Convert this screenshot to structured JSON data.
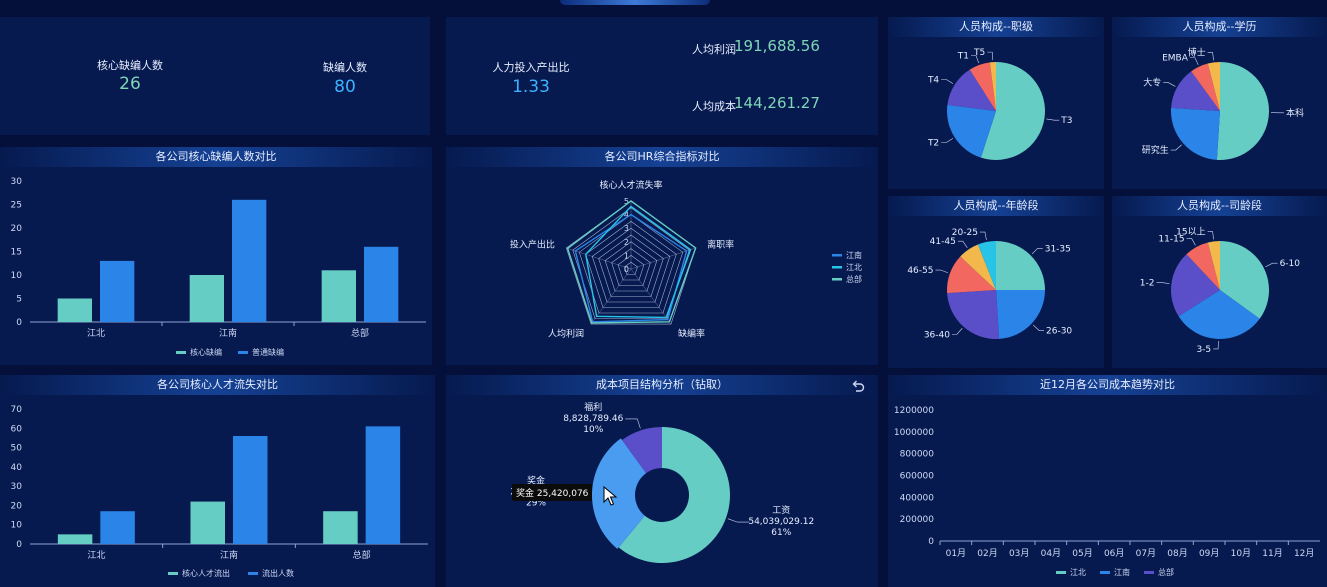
{
  "kpis": {
    "core_vacancy": {
      "label": "核心缺编人数",
      "value": "26"
    },
    "vacancy": {
      "label": "缺编人数",
      "value": "80"
    },
    "roi": {
      "label": "人力投入产出比",
      "value": "1.33"
    },
    "profit_per_capita": {
      "label": "人均利润",
      "value": "191,688.56"
    },
    "cost_per_capita": {
      "label": "人均成本",
      "value": "144,261.27"
    }
  },
  "colors": {
    "teal": "#66cdc4",
    "blue": "#2b84e8",
    "purple": "#5a4fc9",
    "red": "#f2675f",
    "yellow": "#f2b84b",
    "cyan": "#27c4e8"
  },
  "cost_pie_tooltip": "奖金 25,420,076",
  "chart_data": [
    {
      "id": "vacancy_bar",
      "type": "bar",
      "title": "各公司核心缺编人数对比",
      "categories": [
        "江北",
        "江南",
        "总部"
      ],
      "series": [
        {
          "name": "核心缺编",
          "values": [
            5,
            10,
            11
          ]
        },
        {
          "name": "普通缺编",
          "values": [
            13,
            26,
            16
          ]
        }
      ],
      "ylim": [
        0,
        30
      ],
      "yticks": [
        "0",
        "5",
        "10",
        "15",
        "20",
        "25",
        "30"
      ],
      "legend": "bottom"
    },
    {
      "id": "hr_radar",
      "type": "radar",
      "title": "各公司HR综合指标对比",
      "indicators": [
        "核心人才流失率",
        "离职率",
        "缺编率",
        "人均利润",
        "投入产出比"
      ],
      "max": 5,
      "ticks": [
        "0",
        "1",
        "2",
        "3",
        "4",
        "5"
      ],
      "series": [
        {
          "name": "江南",
          "values": [
            4,
            4.3,
            4.6,
            4.8,
            4.3
          ]
        },
        {
          "name": "江北",
          "values": [
            4.6,
            4.6,
            4.4,
            4.3,
            3.5
          ]
        },
        {
          "name": "总部",
          "values": [
            5,
            5,
            4.8,
            4.9,
            4.9
          ]
        }
      ],
      "legend": "right"
    },
    {
      "id": "talent_loss_bar",
      "type": "bar",
      "title": "各公司核心人才流失对比",
      "categories": [
        "江北",
        "江南",
        "总部"
      ],
      "series": [
        {
          "name": "核心人才流出",
          "values": [
            5,
            22,
            17
          ]
        },
        {
          "name": "流出人数",
          "values": [
            17,
            56,
            61
          ]
        }
      ],
      "ylim": [
        0,
        70
      ],
      "yticks": [
        "0",
        "10",
        "20",
        "30",
        "40",
        "50",
        "60",
        "70"
      ],
      "legend": "bottom"
    },
    {
      "id": "cost_donut",
      "type": "pie",
      "title": "成本项目结构分析（钻取）",
      "slices": [
        {
          "name": "工资",
          "value": "54,039,029.12",
          "percent": "61%",
          "share": 61
        },
        {
          "name": "奖金",
          "value": "25,420,076",
          "percent": "29%",
          "share": 29
        },
        {
          "name": "福利",
          "value": "8,828,789.46",
          "percent": "10%",
          "share": 10
        }
      ]
    },
    {
      "id": "pie_rank",
      "type": "pie",
      "title": "人员构成--职级",
      "slices": [
        {
          "name": "T3",
          "share": 55
        },
        {
          "name": "T2",
          "share": 22
        },
        {
          "name": "T4",
          "share": 14
        },
        {
          "name": "T1",
          "share": 7
        },
        {
          "name": "T5",
          "share": 2
        }
      ]
    },
    {
      "id": "pie_edu",
      "type": "pie",
      "title": "人员构成--学历",
      "slices": [
        {
          "name": "本科",
          "share": 51
        },
        {
          "name": "研究生",
          "share": 25
        },
        {
          "name": "大专",
          "share": 14
        },
        {
          "name": "EMBA",
          "share": 6
        },
        {
          "name": "博士",
          "share": 4
        }
      ]
    },
    {
      "id": "pie_age",
      "type": "pie",
      "title": "人员构成--年龄段",
      "slices": [
        {
          "name": "31-35",
          "share": 25
        },
        {
          "name": "26-30",
          "share": 24
        },
        {
          "name": "36-40",
          "share": 25
        },
        {
          "name": "46-55",
          "share": 13
        },
        {
          "name": "41-45",
          "share": 7
        },
        {
          "name": "20-25",
          "share": 6
        }
      ]
    },
    {
      "id": "pie_tenure",
      "type": "pie",
      "title": "人员构成--司龄段",
      "slices": [
        {
          "name": "6-10",
          "share": 35
        },
        {
          "name": "3-5",
          "share": 31
        },
        {
          "name": "1-2",
          "share": 22
        },
        {
          "name": "11-15",
          "share": 8
        },
        {
          "name": "15以上",
          "share": 4
        }
      ]
    },
    {
      "id": "cost_trend",
      "type": "line",
      "title": "近12月各公司成本趋势对比",
      "categories": [
        "01月",
        "02月",
        "03月",
        "04月",
        "05月",
        "06月",
        "07月",
        "08月",
        "09月",
        "10月",
        "11月",
        "12月"
      ],
      "ylim": [
        0,
        1200000
      ],
      "yticks": [
        "0",
        "200000",
        "400000",
        "600000",
        "800000",
        "1000000",
        "1200000"
      ],
      "series": [
        {
          "name": "江北"
        },
        {
          "name": "江南"
        },
        {
          "name": "总部"
        }
      ],
      "legend": "bottom"
    }
  ]
}
